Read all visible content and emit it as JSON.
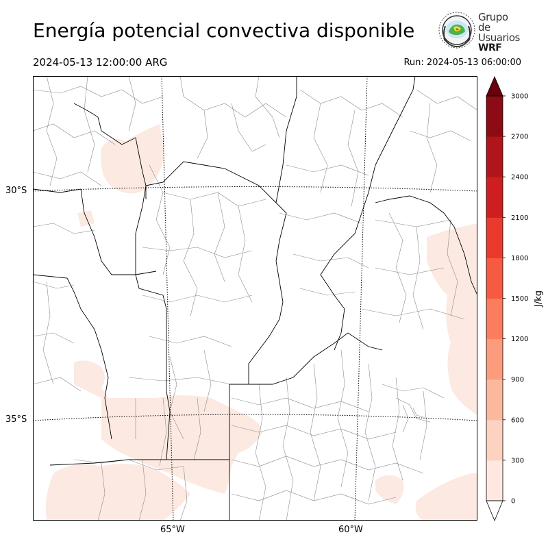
{
  "header": {
    "title": "Energía potencial convectiva disponible",
    "valid_time": "2024-05-13 12:00:00 ARG",
    "run_label": "Run: 2024-05-13 06:00:00"
  },
  "logo": {
    "line1": "Grupo de",
    "line2": "Usuarios",
    "line3": "WRF"
  },
  "axes": {
    "lat_labels": [
      "30°S",
      "35°S"
    ],
    "lon_labels": [
      "65°W",
      "60°W"
    ]
  },
  "colorbar": {
    "unit_label": "J/kg",
    "ticks": [
      "0",
      "300",
      "600",
      "900",
      "1200",
      "1500",
      "1800",
      "2100",
      "2400",
      "2700",
      "3000"
    ],
    "colors": [
      "#fee8e0",
      "#fdd2c1",
      "#fcb89c",
      "#fc9c7c",
      "#fb7d5d",
      "#f65a41",
      "#ea3a2d",
      "#cf1e1f",
      "#b1141a",
      "#8c0b14",
      "#69000d"
    ],
    "extend_low_color": "#ffffff",
    "extend_high_color": "#69000d"
  },
  "colors": {
    "cape_light": "#fce9e2",
    "province_border": "#000000",
    "department_border": "#777777"
  }
}
